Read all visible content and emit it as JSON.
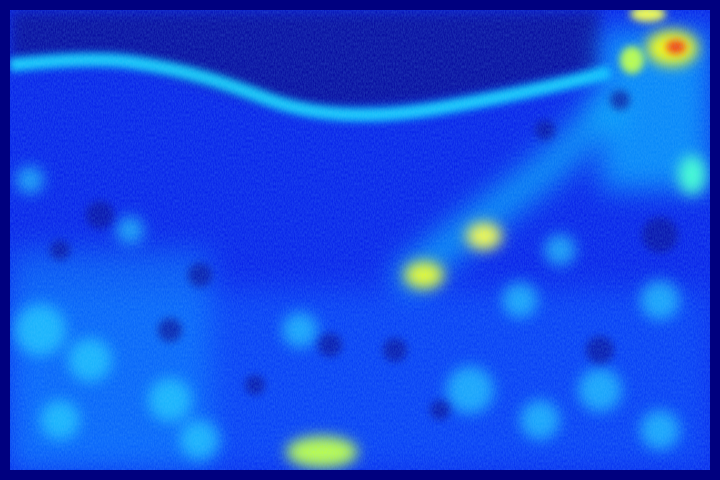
{
  "image": {
    "kind": "jet-colormap-heatmap",
    "colormap": "jet",
    "colors": {
      "frame": "#00007f",
      "deep_blue": "#0000ff",
      "blue": "#0040ff",
      "cyan": "#00e0ff",
      "yellow": "#ffff00",
      "red": "#ff2000"
    }
  }
}
